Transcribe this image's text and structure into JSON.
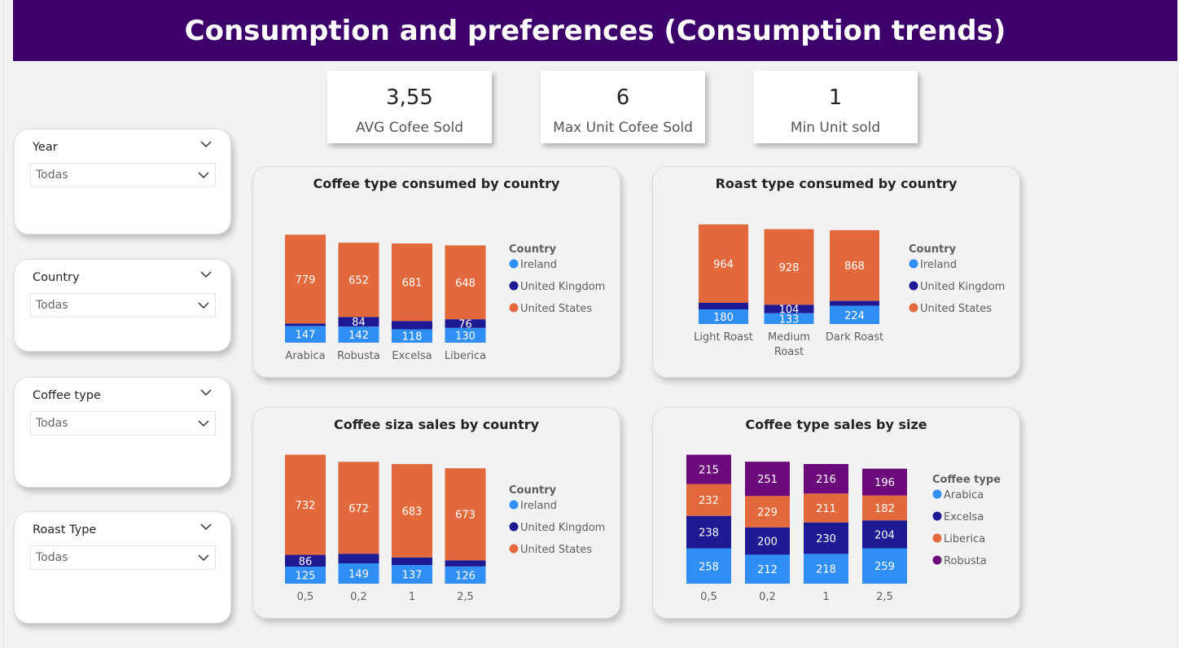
{
  "title": "Consumption and preferences (Consumption trends)",
  "kpis": [
    {
      "value": "3,55",
      "label": "AVG Cofee Sold"
    },
    {
      "value": "6",
      "label": "Max Unit Cofee Sold"
    },
    {
      "value": "1",
      "label": "Min Unit sold"
    }
  ],
  "slicers": [
    {
      "label": "Year",
      "value": "Todas"
    },
    {
      "label": "Country",
      "value": "Todas"
    },
    {
      "label": "Coffee type",
      "value": "Todas"
    },
    {
      "label": "Roast Type",
      "value": "Todas"
    }
  ],
  "colors": {
    "header": "#3d006b",
    "ireland": "#2f8ff5",
    "united_kingdom": "#1e1a93",
    "united_states": "#e2693c",
    "arabica": "#2f8ff5",
    "excelsa": "#1e1a93",
    "liberica": "#e2693c",
    "robusta": "#6b0a7b"
  },
  "chart_data": [
    {
      "type": "bar",
      "stacked": true,
      "title": "Coffee type consumed by country",
      "categories": [
        "Arabica",
        "Robusta",
        "Excelsa",
        "Liberica"
      ],
      "legend_title": "Country",
      "legend_position": "right",
      "series": [
        {
          "name": "Ireland",
          "color": "#2f8ff5",
          "values": [
            147,
            142,
            118,
            130
          ],
          "labels": [
            "147",
            "142",
            "118",
            "130"
          ]
        },
        {
          "name": "United Kingdom",
          "color": "#1e1a93",
          "values": [
            22,
            84,
            72,
            76
          ],
          "labels": [
            "",
            "84",
            "",
            "76"
          ]
        },
        {
          "name": "United States",
          "color": "#e2693c",
          "values": [
            779,
            652,
            681,
            648
          ],
          "labels": [
            "779",
            "652",
            "681",
            "648"
          ]
        }
      ]
    },
    {
      "type": "bar",
      "stacked": true,
      "title": "Roast type consumed by country",
      "categories": [
        "Light Roast",
        "Medium Roast",
        "Dark Roast"
      ],
      "legend_title": "Country",
      "legend_position": "right",
      "series": [
        {
          "name": "Ireland",
          "color": "#2f8ff5",
          "values": [
            180,
            133,
            224
          ],
          "labels": [
            "180",
            "133",
            "224"
          ]
        },
        {
          "name": "United Kingdom",
          "color": "#1e1a93",
          "values": [
            80,
            104,
            60
          ],
          "labels": [
            "",
            "104",
            ""
          ]
        },
        {
          "name": "United States",
          "color": "#e2693c",
          "values": [
            964,
            928,
            868
          ],
          "labels": [
            "964",
            "928",
            "868"
          ]
        }
      ]
    },
    {
      "type": "bar",
      "stacked": true,
      "title": "Coffee siza sales by country",
      "categories": [
        "0,5",
        "0,2",
        "1",
        "2,5"
      ],
      "legend_title": "Country",
      "legend_position": "right",
      "series": [
        {
          "name": "Ireland",
          "color": "#2f8ff5",
          "values": [
            125,
            149,
            137,
            126
          ],
          "labels": [
            "125",
            "149",
            "137",
            "126"
          ]
        },
        {
          "name": "United Kingdom",
          "color": "#1e1a93",
          "values": [
            86,
            70,
            55,
            45
          ],
          "labels": [
            "86",
            "",
            "",
            ""
          ]
        },
        {
          "name": "United States",
          "color": "#e2693c",
          "values": [
            732,
            672,
            683,
            673
          ],
          "labels": [
            "732",
            "672",
            "683",
            "673"
          ]
        }
      ]
    },
    {
      "type": "bar",
      "stacked": true,
      "title": "Coffee type sales by size",
      "categories": [
        "0,5",
        "0,2",
        "1",
        "2,5"
      ],
      "legend_title": "Coffee type",
      "legend_position": "right",
      "series": [
        {
          "name": "Arabica",
          "color": "#2f8ff5",
          "values": [
            258,
            212,
            218,
            259
          ],
          "labels": [
            "258",
            "212",
            "218",
            "259"
          ]
        },
        {
          "name": "Excelsa",
          "color": "#1e1a93",
          "values": [
            238,
            200,
            230,
            204
          ],
          "labels": [
            "238",
            "200",
            "230",
            "204"
          ]
        },
        {
          "name": "Liberica",
          "color": "#e2693c",
          "values": [
            232,
            229,
            211,
            182
          ],
          "labels": [
            "232",
            "229",
            "211",
            "182"
          ]
        },
        {
          "name": "Robusta",
          "color": "#6b0a7b",
          "values": [
            215,
            251,
            216,
            196
          ],
          "labels": [
            "215",
            "251",
            "216",
            "196"
          ]
        }
      ]
    }
  ]
}
